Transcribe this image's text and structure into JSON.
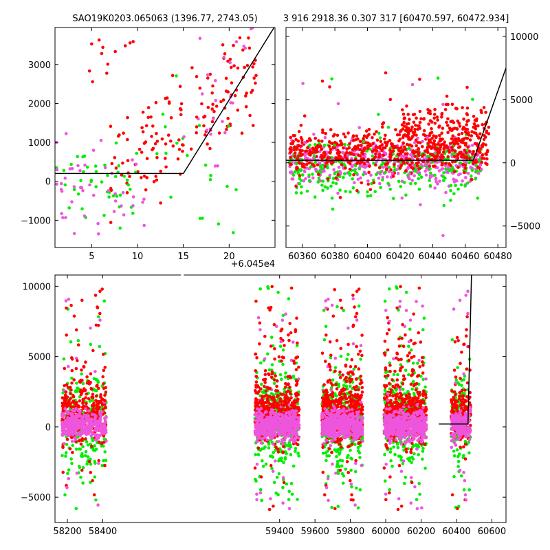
{
  "titles": {
    "left": "SAO19K0203.065063 (1396.77, 2743.05)",
    "right": "3 916 2918.36 0.307 317 [60470.597, 60472.934]"
  },
  "offset_label": "+6.045e4",
  "colors": {
    "red": "#ff0000",
    "green": "#00ee00",
    "magenta": "#ee55dd",
    "model": "#000000"
  },
  "chart_data": [
    {
      "id": "top-left",
      "type": "scatter",
      "xlim": [
        1,
        25
      ],
      "ylim": [
        -1700,
        3950
      ],
      "xticks": [
        5,
        10,
        15,
        20
      ],
      "yticks": [
        -1000,
        0,
        1000,
        2000,
        3000
      ],
      "x_offset_text": "+6.045e4",
      "model_line": [
        [
          1,
          200
        ],
        [
          15,
          200
        ],
        [
          24.9,
          3950
        ]
      ],
      "clusters": [
        {
          "color": "red",
          "n": 150,
          "x": [
            7,
            23
          ],
          "y": [
            0,
            3000
          ],
          "trend": 120
        },
        {
          "color": "red",
          "n": 12,
          "x": [
            4,
            11
          ],
          "y": [
            2700,
            3800
          ],
          "trend": 0
        },
        {
          "color": "green",
          "n": 45,
          "x": [
            1,
            10
          ],
          "y": [
            -1200,
            800
          ],
          "trend": 0
        },
        {
          "color": "green",
          "n": 20,
          "x": [
            12,
            22
          ],
          "y": [
            -1100,
            2000
          ],
          "trend": 0
        },
        {
          "color": "magenta",
          "n": 45,
          "x": [
            1,
            11
          ],
          "y": [
            -1500,
            900
          ],
          "trend": 0
        },
        {
          "color": "magenta",
          "n": 25,
          "x": [
            15,
            23
          ],
          "y": [
            400,
            3900
          ],
          "trend": 150
        }
      ]
    },
    {
      "id": "top-right",
      "type": "scatter",
      "xlim": [
        60350,
        60485
      ],
      "ylim": [
        -6700,
        10700
      ],
      "xticks": [
        60360,
        60380,
        60400,
        60420,
        60440,
        60460,
        60480
      ],
      "yticks": [
        -5000,
        0,
        5000,
        10000
      ],
      "y_axis_side": "right",
      "model_line": [
        [
          60350,
          200
        ],
        [
          60465,
          200
        ],
        [
          60485,
          7500
        ]
      ],
      "clusters": [
        {
          "color": "magenta",
          "n": 500,
          "x": [
            60352,
            60470
          ],
          "y": [
            -1500,
            1500
          ],
          "trend": 0
        },
        {
          "color": "green",
          "n": 250,
          "x": [
            60352,
            60470
          ],
          "y": [
            -2500,
            1500
          ],
          "trend": 0
        },
        {
          "color": "red",
          "n": 550,
          "x": [
            60352,
            60475
          ],
          "y": [
            -600,
            2400
          ],
          "trend": 0
        },
        {
          "color": "red",
          "n": 150,
          "x": [
            60420,
            60475
          ],
          "y": [
            1500,
            4500
          ],
          "trend": 0
        },
        {
          "color": "red",
          "n": 20,
          "x": [
            60370,
            60470
          ],
          "y": [
            -2500,
            8000
          ],
          "trend": 0
        },
        {
          "color": "green",
          "n": 15,
          "x": [
            60360,
            60470
          ],
          "y": [
            -3500,
            10000
          ],
          "trend": 0
        },
        {
          "color": "magenta",
          "n": 15,
          "x": [
            60360,
            60470
          ],
          "y": [
            -6500,
            9000
          ],
          "trend": 0
        }
      ]
    },
    {
      "id": "bottom",
      "type": "scatter",
      "xlim": [
        58130,
        60680
      ],
      "ylim": [
        -6800,
        10800
      ],
      "xticks": [
        58200,
        58400,
        59400,
        59600,
        59800,
        60000,
        60200,
        60400,
        60600
      ],
      "yticks": [
        -5000,
        0,
        5000,
        10000
      ],
      "model_line": [
        [
          60300,
          200
        ],
        [
          60465,
          200
        ],
        [
          60485,
          10800
        ]
      ],
      "axis_gap": [
        58470,
        59230
      ],
      "seasons": [
        {
          "x": [
            58170,
            58420
          ],
          "n": 900
        },
        {
          "x": [
            59260,
            59510
          ],
          "n": 1300
        },
        {
          "x": [
            59640,
            59870
          ],
          "n": 1300
        },
        {
          "x": [
            59990,
            60230
          ],
          "n": 1300
        },
        {
          "x": [
            60370,
            60480
          ],
          "n": 500
        }
      ]
    }
  ]
}
